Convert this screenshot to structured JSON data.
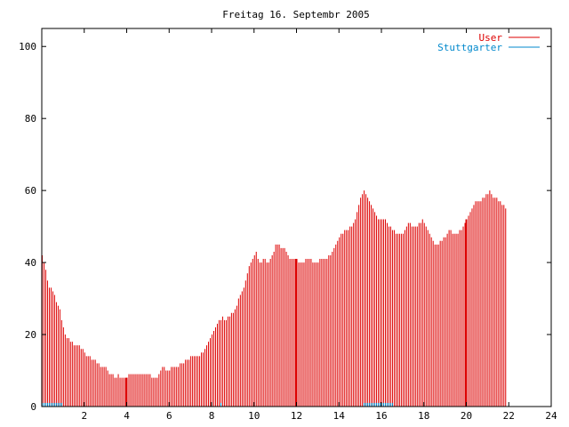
{
  "chart_data": {
    "type": "bar",
    "title": "Freitag 16. Septembr 2005",
    "xlim": [
      0,
      24
    ],
    "ylim": [
      0,
      105
    ],
    "x_ticks": [
      2,
      4,
      6,
      8,
      10,
      12,
      14,
      16,
      18,
      20,
      22,
      24
    ],
    "x_tick_labels": [
      "2",
      "4",
      "6",
      "8",
      "10",
      "12",
      "14",
      "16",
      "18",
      "20",
      "22",
      "24"
    ],
    "y_ticks": [
      0,
      20,
      40,
      60,
      80,
      100
    ],
    "y_tick_labels": [
      "0",
      "20",
      "40",
      "60",
      "80",
      "100"
    ],
    "grid": false,
    "legend_position": "top-right",
    "colors": {
      "user": "#dd0000",
      "stuttgarter": "#0088cc"
    },
    "series": [
      {
        "name": "User",
        "interval_minutes": 5,
        "values": [
          42,
          40,
          38,
          35,
          33,
          33,
          32,
          31,
          29,
          28,
          27,
          24,
          22,
          20,
          19,
          19,
          18,
          18,
          17,
          17,
          17,
          17,
          16,
          16,
          15,
          14,
          14,
          14,
          13,
          13,
          13,
          12,
          12,
          11,
          11,
          11,
          11,
          10,
          9,
          9,
          9,
          8,
          8,
          9,
          8,
          8,
          8,
          8,
          8,
          9,
          9,
          9,
          9,
          9,
          9,
          9,
          9,
          9,
          9,
          9,
          9,
          9,
          8,
          8,
          8,
          8,
          9,
          10,
          11,
          11,
          10,
          10,
          10,
          11,
          11,
          11,
          11,
          11,
          12,
          12,
          12,
          13,
          13,
          13,
          14,
          14,
          14,
          14,
          14,
          14,
          15,
          15,
          16,
          17,
          18,
          19,
          20,
          21,
          22,
          23,
          24,
          24,
          25,
          24,
          24,
          25,
          25,
          26,
          26,
          27,
          28,
          30,
          31,
          32,
          33,
          35,
          37,
          39,
          40,
          41,
          42,
          43,
          41,
          40,
          40,
          41,
          41,
          40,
          40,
          41,
          42,
          43,
          45,
          45,
          45,
          44,
          44,
          44,
          43,
          42,
          41,
          41,
          41,
          41,
          41,
          40,
          40,
          40,
          40,
          41,
          41,
          41,
          41,
          40,
          40,
          40,
          40,
          41,
          41,
          41,
          41,
          41,
          42,
          42,
          43,
          44,
          45,
          46,
          47,
          48,
          48,
          49,
          49,
          49,
          50,
          50,
          51,
          52,
          54,
          56,
          58,
          59,
          60,
          59,
          58,
          57,
          56,
          55,
          54,
          53,
          52,
          52,
          52,
          52,
          52,
          51,
          50,
          50,
          49,
          49,
          48,
          48,
          48,
          48,
          48,
          49,
          50,
          51,
          51,
          50,
          50,
          50,
          50,
          51,
          51,
          52,
          51,
          50,
          49,
          48,
          47,
          46,
          45,
          45,
          45,
          46,
          46,
          47,
          47,
          48,
          49,
          49,
          48,
          48,
          48,
          48,
          49,
          49,
          50,
          51,
          52,
          53,
          54,
          55,
          56,
          57,
          57,
          57,
          57,
          58,
          58,
          59,
          59,
          60,
          59,
          58,
          58,
          58,
          57,
          57,
          56,
          56,
          55
        ]
      },
      {
        "name": "Stuttgarter",
        "interval_minutes": 5,
        "values": [
          1,
          1,
          1,
          1,
          1,
          1,
          1,
          1,
          1,
          1,
          1,
          1,
          0,
          0,
          0,
          0,
          0,
          0,
          0,
          0,
          0,
          0,
          0,
          0,
          0,
          0,
          0,
          0,
          0,
          0,
          0,
          0,
          0,
          0,
          0,
          0,
          0,
          0,
          0,
          0,
          0,
          0,
          0,
          0,
          0,
          0,
          0,
          0,
          0,
          0,
          0,
          0,
          0,
          0,
          0,
          0,
          0,
          0,
          0,
          0,
          0,
          0,
          0,
          0,
          0,
          0,
          0,
          0,
          0,
          0,
          0,
          0,
          0,
          0,
          0,
          0,
          0,
          0,
          0,
          0,
          0,
          0,
          0,
          0,
          0,
          0,
          0,
          0,
          0,
          0,
          0,
          0,
          0,
          0,
          0,
          0,
          0,
          0,
          0,
          0,
          0,
          1,
          0,
          0,
          0,
          0,
          0,
          0,
          0,
          0,
          0,
          0,
          0,
          0,
          0,
          0,
          0,
          0,
          0,
          0,
          0,
          0,
          0,
          0,
          0,
          0,
          0,
          0,
          0,
          0,
          0,
          0,
          0,
          0,
          0,
          0,
          0,
          0,
          0,
          0,
          0,
          0,
          0,
          0,
          0,
          0,
          0,
          0,
          0,
          0,
          0,
          0,
          0,
          0,
          0,
          0,
          0,
          0,
          0,
          0,
          0,
          0,
          0,
          0,
          0,
          0,
          0,
          0,
          0,
          0,
          0,
          0,
          0,
          0,
          0,
          0,
          0,
          0,
          0,
          0,
          0,
          0,
          1,
          1,
          1,
          1,
          1,
          1,
          1,
          1,
          1,
          1,
          1,
          1,
          1,
          1,
          1,
          1,
          1,
          0,
          0,
          0,
          0,
          0,
          0,
          0,
          0,
          0,
          0,
          0,
          0,
          0,
          0,
          0,
          0,
          0,
          0,
          0,
          0,
          0,
          0,
          0,
          0,
          0,
          0,
          0,
          0,
          0,
          0,
          0,
          0,
          0,
          0,
          0,
          0,
          0,
          0,
          0,
          0,
          0,
          0,
          0,
          0,
          0,
          0,
          0,
          0,
          0,
          0,
          0,
          0,
          0,
          0,
          0,
          0,
          0,
          0,
          0,
          0,
          0,
          0,
          0,
          0,
          0,
          0,
          0,
          0,
          0,
          0,
          0,
          0,
          0,
          0,
          0,
          0,
          0,
          0,
          0,
          0,
          0,
          0,
          0
        ]
      }
    ],
    "markers": [
      {
        "x": 4,
        "color": "#dd0000"
      },
      {
        "x": 12,
        "color": "#dd0000"
      },
      {
        "x": 20,
        "color": "#dd0000"
      }
    ]
  }
}
